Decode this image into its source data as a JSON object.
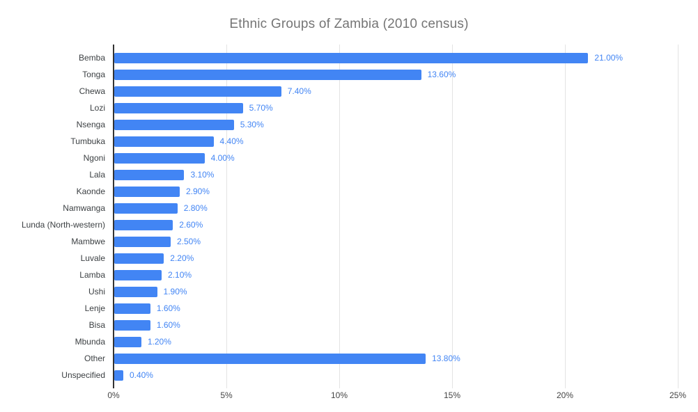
{
  "chart_data": {
    "type": "bar",
    "orientation": "horizontal",
    "title": "Ethnic Groups of Zambia (2010 census)",
    "categories": [
      "Bemba",
      "Tonga",
      "Chewa",
      "Lozi",
      "Nsenga",
      "Tumbuka",
      "Ngoni",
      "Lala",
      "Kaonde",
      "Namwanga",
      "Lunda (North-western)",
      "Mambwe",
      "Luvale",
      "Lamba",
      "Ushi",
      "Lenje",
      "Bisa",
      "Mbunda",
      "Other",
      "Unspecified"
    ],
    "values": [
      21.0,
      13.6,
      7.4,
      5.7,
      5.3,
      4.4,
      4.0,
      3.1,
      2.9,
      2.8,
      2.6,
      2.5,
      2.2,
      2.1,
      1.9,
      1.6,
      1.6,
      1.2,
      13.8,
      0.4
    ],
    "value_labels": [
      "21.00%",
      "13.60%",
      "7.40%",
      "5.70%",
      "5.30%",
      "4.40%",
      "4.00%",
      "3.10%",
      "2.90%",
      "2.80%",
      "2.60%",
      "2.50%",
      "2.20%",
      "2.10%",
      "1.90%",
      "1.60%",
      "1.60%",
      "1.20%",
      "13.80%",
      "0.40%"
    ],
    "xlabel": "",
    "ylabel": "",
    "xlim": [
      0,
      25
    ],
    "x_ticks": [
      {
        "value": 0,
        "label": "0%"
      },
      {
        "value": 5,
        "label": "5%"
      },
      {
        "value": 10,
        "label": "10%"
      },
      {
        "value": 15,
        "label": "15%"
      },
      {
        "value": 20,
        "label": "20%"
      },
      {
        "value": 25,
        "label": "25%"
      }
    ],
    "grid": true,
    "legend": "none",
    "colors": {
      "bar": "#4285f4",
      "value_label": "#4285f4",
      "title": "#757575",
      "axis_label": "#444444",
      "category_label": "#3c4043",
      "gridline": "#e3e3e3",
      "axis_line": "#333333",
      "background": "#ffffff"
    }
  }
}
